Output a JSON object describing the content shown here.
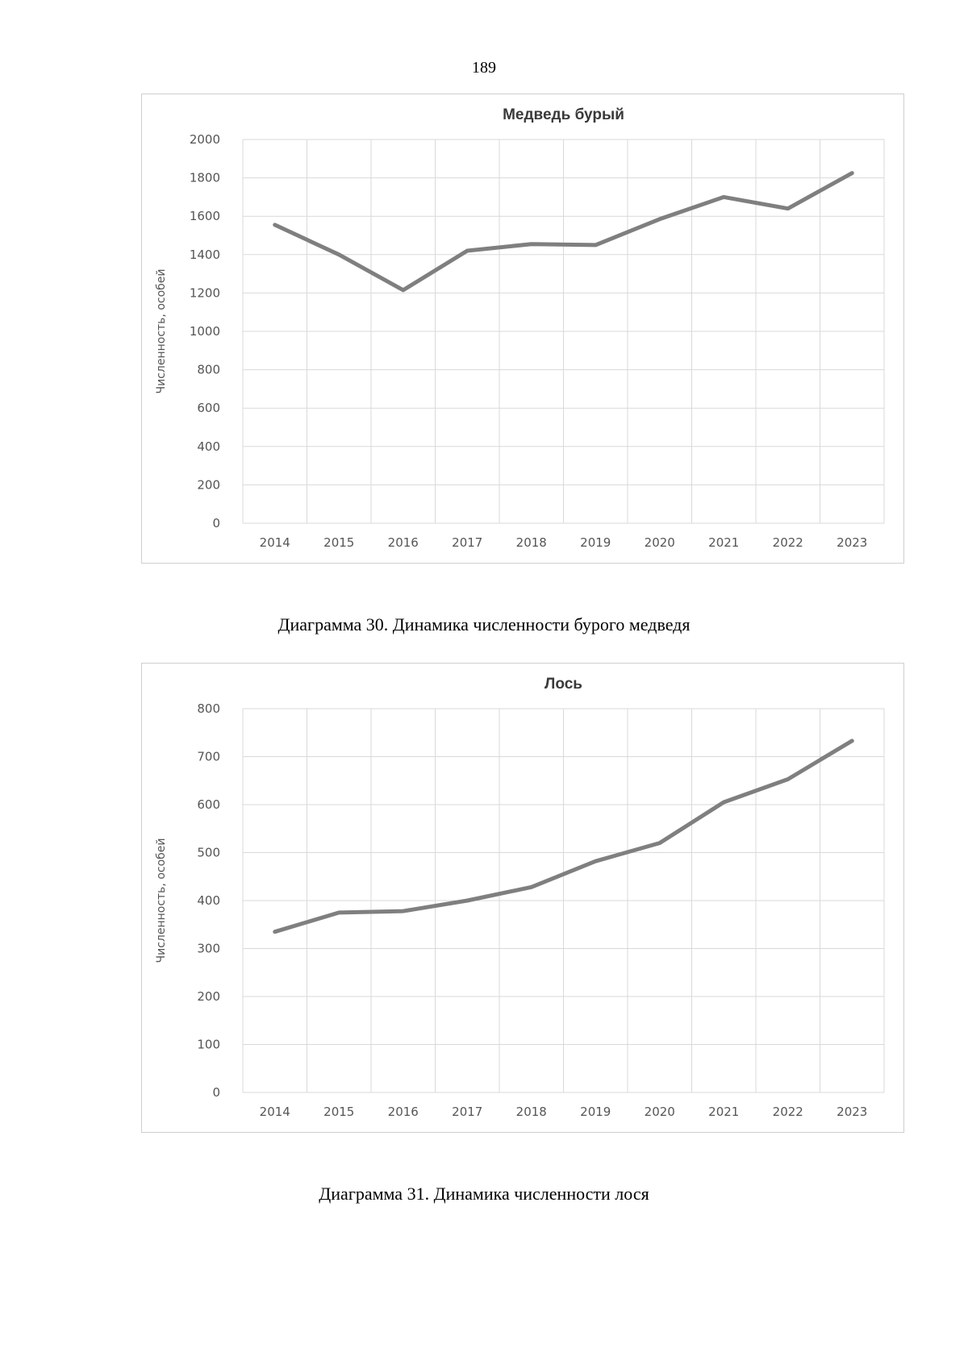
{
  "page": {
    "number": "189"
  },
  "charts": [
    {
      "caption": "Диаграмма 30. Динамика численности бурого медведя",
      "chart_data": {
        "type": "line",
        "title": "Медведь бурый",
        "xlabel": "",
        "ylabel": "Численность, особей",
        "categories": [
          "2014",
          "2015",
          "2016",
          "2017",
          "2018",
          "2019",
          "2020",
          "2021",
          "2022",
          "2023"
        ],
        "series": [
          {
            "name": "Медведь бурый",
            "values": [
              1555,
              1400,
              1215,
              1420,
              1455,
              1450,
              1585,
              1700,
              1640,
              1825
            ]
          }
        ],
        "ylim": [
          0,
          2000
        ],
        "yticks": [
          0,
          200,
          400,
          600,
          800,
          1000,
          1200,
          1400,
          1600,
          1800,
          2000
        ],
        "grid": true,
        "line_color": "#7f7f7f"
      }
    },
    {
      "caption": "Диаграмма 31. Динамика численности лося",
      "chart_data": {
        "type": "line",
        "title": "Лось",
        "xlabel": "",
        "ylabel": "Численность, особей",
        "categories": [
          "2014",
          "2015",
          "2016",
          "2017",
          "2018",
          "2019",
          "2020",
          "2021",
          "2022",
          "2023"
        ],
        "series": [
          {
            "name": "Лось",
            "values": [
              335,
              375,
              378,
              400,
              428,
              482,
              520,
              605,
              653,
              733
            ]
          }
        ],
        "ylim": [
          0,
          800
        ],
        "yticks": [
          0,
          100,
          200,
          300,
          400,
          500,
          600,
          700,
          800
        ],
        "grid": true,
        "line_color": "#7f7f7f"
      }
    }
  ]
}
